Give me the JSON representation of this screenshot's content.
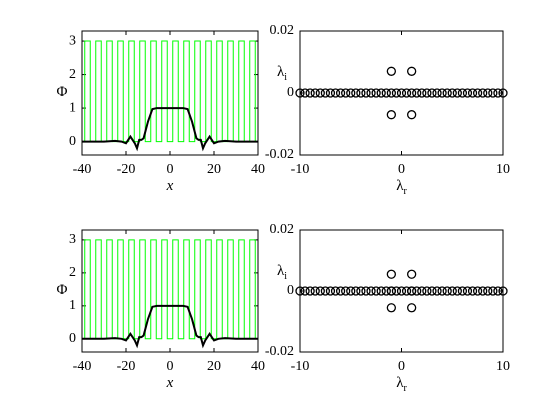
{
  "chart_data": [
    {
      "type": "line",
      "xlabel": "x",
      "ylabel": "Φ",
      "xlim": [
        -40,
        40
      ],
      "xticks": [
        -40,
        -20,
        0,
        20,
        40
      ],
      "ylim": [
        -0.4,
        3.3
      ],
      "yticks": [
        0,
        1,
        2,
        3
      ],
      "series": [
        {
          "color": "#00ff00",
          "x": [
            -40,
            -38.75,
            -38.75,
            -36.25,
            -36.25,
            -33.75,
            -33.75,
            -31.25,
            -31.25,
            -28.75,
            -28.75,
            -26.25,
            -26.25,
            -23.75,
            -23.75,
            -21.25,
            -21.25,
            -18.75,
            -18.75,
            -16.25,
            -16.25,
            -13.75,
            -13.75,
            -11.25,
            -11.25,
            -8.75,
            -8.75,
            -6.25,
            -6.25,
            -3.75,
            -3.75,
            -1.25,
            -1.25,
            1.25,
            1.25,
            3.75,
            3.75,
            6.25,
            6.25,
            8.75,
            8.75,
            11.25,
            11.25,
            13.75,
            13.75,
            16.25,
            16.25,
            18.75,
            18.75,
            21.25,
            21.25,
            23.75,
            23.75,
            26.25,
            26.25,
            28.75,
            28.75,
            31.25,
            31.25,
            33.75,
            33.75,
            36.25,
            36.25,
            38.75,
            38.75,
            40
          ],
          "values": [
            0,
            0,
            3,
            3,
            0,
            0,
            3,
            3,
            0,
            0,
            3,
            3,
            0,
            0,
            3,
            3,
            0,
            0,
            3,
            3,
            0,
            0,
            3,
            3,
            0,
            0,
            3,
            3,
            0,
            0,
            3,
            3,
            0,
            0,
            3,
            3,
            0,
            0,
            3,
            3,
            0,
            0,
            3,
            3,
            0,
            0,
            3,
            3,
            0,
            0,
            3,
            3,
            0,
            0,
            3,
            3,
            0,
            0,
            3,
            3,
            0,
            0,
            3,
            3,
            0,
            0
          ]
        },
        {
          "color": "#000000",
          "x": [
            -40,
            -30,
            -25,
            -22,
            -20,
            -18,
            -16,
            -15,
            -14,
            -13,
            -12,
            -10,
            -8,
            -6,
            0,
            6,
            8,
            10,
            12,
            13,
            14,
            15,
            16,
            18,
            20,
            22,
            25,
            30,
            40
          ],
          "values": [
            0,
            0,
            0.02,
            0,
            -0.05,
            0.15,
            -0.05,
            -0.2,
            0.05,
            0.05,
            0.1,
            0.6,
            0.97,
            1,
            1,
            1,
            0.97,
            0.6,
            0.1,
            0.05,
            0.05,
            -0.2,
            -0.05,
            0.15,
            -0.05,
            0,
            0.02,
            0,
            0
          ]
        }
      ]
    },
    {
      "type": "scatter",
      "xlabel": "λ",
      "xlabel_subscript": "r",
      "ylabel": "λ",
      "ylabel_subscript": "i",
      "xlim": [
        -10,
        10
      ],
      "xticks": [
        -10,
        0,
        10
      ],
      "ylim": [
        -0.02,
        0.02
      ],
      "yticks": [
        -0.02,
        0,
        0.02
      ],
      "series": [
        {
          "color": "#000000",
          "x": [
            -10,
            -9.5,
            -9,
            -8.5,
            -8,
            -7.5,
            -7,
            -6.5,
            -6,
            -5.5,
            -5,
            -4.5,
            -4,
            -3.5,
            -3,
            -2.5,
            -2,
            -1.5,
            -1,
            -0.5,
            0,
            0.5,
            1,
            1.5,
            2,
            2.5,
            3,
            3.5,
            4,
            4.5,
            5,
            5.5,
            6,
            6.5,
            7,
            7.5,
            8,
            8.5,
            9,
            9.5,
            10
          ],
          "values": [
            0,
            0,
            0,
            0,
            0,
            0,
            0,
            0,
            0,
            0,
            0,
            0,
            0,
            0,
            0,
            0,
            0,
            0,
            0,
            0,
            0,
            0,
            0,
            0,
            0,
            0,
            0,
            0,
            0,
            0,
            0,
            0,
            0,
            0,
            0,
            0,
            0,
            0,
            0,
            0,
            0
          ]
        },
        {
          "color": "#000000",
          "x": [
            -1,
            1,
            -1,
            1
          ],
          "values": [
            0.007,
            0.007,
            -0.007,
            -0.007
          ]
        }
      ]
    },
    {
      "type": "line",
      "xlabel": "x",
      "ylabel": "Φ",
      "xlim": [
        -40,
        40
      ],
      "xticks": [
        -40,
        -20,
        0,
        20,
        40
      ],
      "ylim": [
        -0.4,
        3.3
      ],
      "yticks": [
        0,
        1,
        2,
        3
      ],
      "series": [
        {
          "color": "#00ff00",
          "x": [
            -40,
            -38.75,
            -38.75,
            -36.25,
            -36.25,
            -33.75,
            -33.75,
            -31.25,
            -31.25,
            -28.75,
            -28.75,
            -26.25,
            -26.25,
            -23.75,
            -23.75,
            -21.25,
            -21.25,
            -18.75,
            -18.75,
            -16.25,
            -16.25,
            -13.75,
            -13.75,
            -11.25,
            -11.25,
            -8.75,
            -8.75,
            -6.25,
            -6.25,
            -3.75,
            -3.75,
            -1.25,
            -1.25,
            1.25,
            1.25,
            3.75,
            3.75,
            6.25,
            6.25,
            8.75,
            8.75,
            11.25,
            11.25,
            13.75,
            13.75,
            16.25,
            16.25,
            18.75,
            18.75,
            21.25,
            21.25,
            23.75,
            23.75,
            26.25,
            26.25,
            28.75,
            28.75,
            31.25,
            31.25,
            33.75,
            33.75,
            36.25,
            36.25,
            38.75,
            38.75,
            40
          ],
          "values": [
            0,
            0,
            3,
            3,
            0,
            0,
            3,
            3,
            0,
            0,
            3,
            3,
            0,
            0,
            3,
            3,
            0,
            0,
            3,
            3,
            0,
            0,
            3,
            3,
            0,
            0,
            3,
            3,
            0,
            0,
            3,
            3,
            0,
            0,
            3,
            3,
            0,
            0,
            3,
            3,
            0,
            0,
            3,
            3,
            0,
            0,
            3,
            3,
            0,
            0,
            3,
            3,
            0,
            0,
            3,
            3,
            0,
            0,
            3,
            3,
            0,
            0,
            3,
            3,
            0,
            0
          ]
        },
        {
          "color": "#000000",
          "x": [
            -40,
            -30,
            -25,
            -22,
            -20,
            -18,
            -16,
            -15,
            -14,
            -13,
            -12,
            -10,
            -8,
            -6,
            0,
            6,
            8,
            10,
            12,
            13,
            14,
            15,
            16,
            18,
            20,
            22,
            25,
            30,
            40
          ],
          "values": [
            0,
            0,
            0.02,
            0,
            -0.05,
            0.15,
            -0.05,
            -0.2,
            0.05,
            0.05,
            0.1,
            0.6,
            0.97,
            1,
            1,
            1,
            0.97,
            0.6,
            0.1,
            0.05,
            0.05,
            -0.2,
            -0.05,
            0.15,
            -0.05,
            0,
            0.02,
            0,
            0
          ]
        }
      ]
    },
    {
      "type": "scatter",
      "xlabel": "λ",
      "xlabel_subscript": "r",
      "ylabel": "λ",
      "ylabel_subscript": "i",
      "xlim": [
        -10,
        10
      ],
      "xticks": [
        -10,
        0,
        10
      ],
      "ylim": [
        -0.02,
        0.02
      ],
      "yticks": [
        -0.02,
        0,
        0.02
      ],
      "series": [
        {
          "color": "#000000",
          "x": [
            -10,
            -9.5,
            -9,
            -8.5,
            -8,
            -7.5,
            -7,
            -6.5,
            -6,
            -5.5,
            -5,
            -4.5,
            -4,
            -3.5,
            -3,
            -2.5,
            -2,
            -1.5,
            -1,
            -0.5,
            0,
            0.5,
            1,
            1.5,
            2,
            2.5,
            3,
            3.5,
            4,
            4.5,
            5,
            5.5,
            6,
            6.5,
            7,
            7.5,
            8,
            8.5,
            9,
            9.5,
            10
          ],
          "values": [
            0,
            0,
            0,
            0,
            0,
            0,
            0,
            0,
            0,
            0,
            0,
            0,
            0,
            0,
            0,
            0,
            0,
            0,
            0,
            0,
            0,
            0,
            0,
            0,
            0,
            0,
            0,
            0,
            0,
            0,
            0,
            0,
            0,
            0,
            0,
            0,
            0,
            0,
            0,
            0,
            0
          ]
        },
        {
          "color": "#000000",
          "x": [
            -1,
            1,
            -1,
            1,
            -1,
            1
          ],
          "values": [
            0.0055,
            0.0055,
            0,
            0,
            -0.0055,
            -0.0055
          ]
        }
      ]
    }
  ]
}
